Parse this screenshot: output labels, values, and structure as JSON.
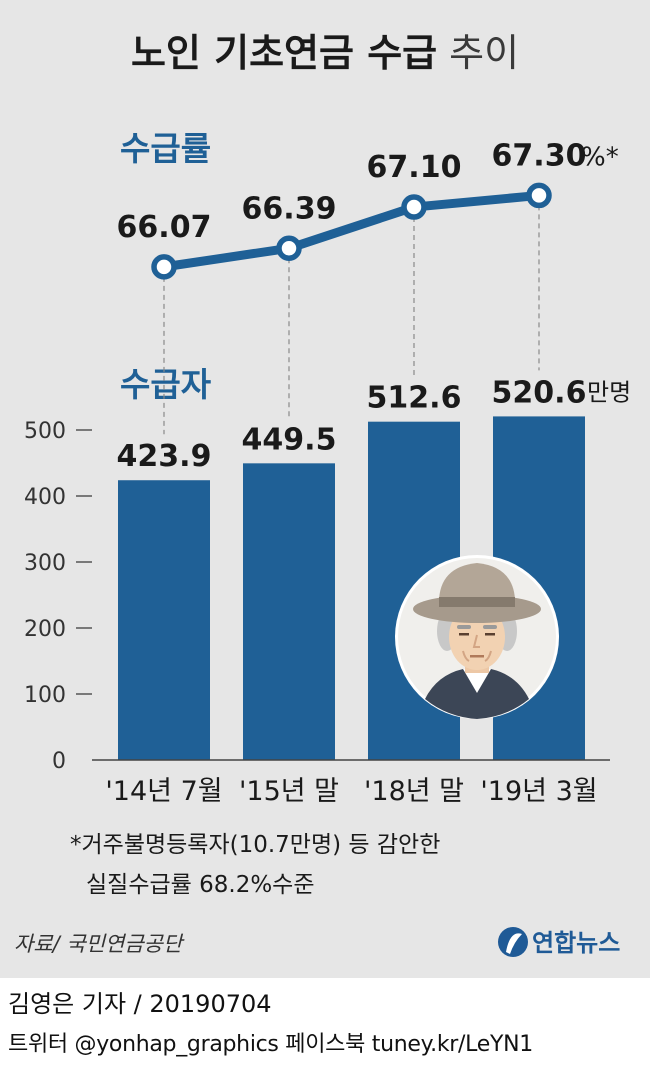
{
  "title": {
    "main": "노인 기초연금 수급",
    "sub": "추이"
  },
  "chart_data": {
    "type": "bar+line",
    "categories": [
      "'14년 7월",
      "'15년 말",
      "'18년 말",
      "'19년 3월"
    ],
    "line": {
      "title": "수급률",
      "values": [
        66.07,
        66.39,
        67.1,
        67.3
      ],
      "labels": [
        "66.07",
        "66.39",
        "67.10",
        "67.30"
      ],
      "unit": "%*",
      "color": "#1f6096"
    },
    "bars": {
      "title": "수급자",
      "values": [
        423.9,
        449.5,
        512.6,
        520.6
      ],
      "labels": [
        "423.9",
        "449.5",
        "512.6",
        "520.6"
      ],
      "unit": "만명",
      "color": "#1f6096"
    },
    "y_ticks": [
      "500",
      "400",
      "300",
      "200",
      "100",
      "0"
    ],
    "y_tick_values": [
      500,
      400,
      300,
      200,
      100,
      0
    ],
    "ylim": [
      0,
      500
    ]
  },
  "note": {
    "line1": "*거주불명등록자(10.7만명) 등 감안한",
    "line2": "실질수급률 68.2%수준"
  },
  "source": "자료/ 국민연금공단",
  "logo": {
    "text": "연합뉴스"
  },
  "footer": {
    "byline": "김영은 기자 / 20190704",
    "social": "트위터 @yonhap_graphics  페이스북 tuney.kr/LeYN1"
  }
}
